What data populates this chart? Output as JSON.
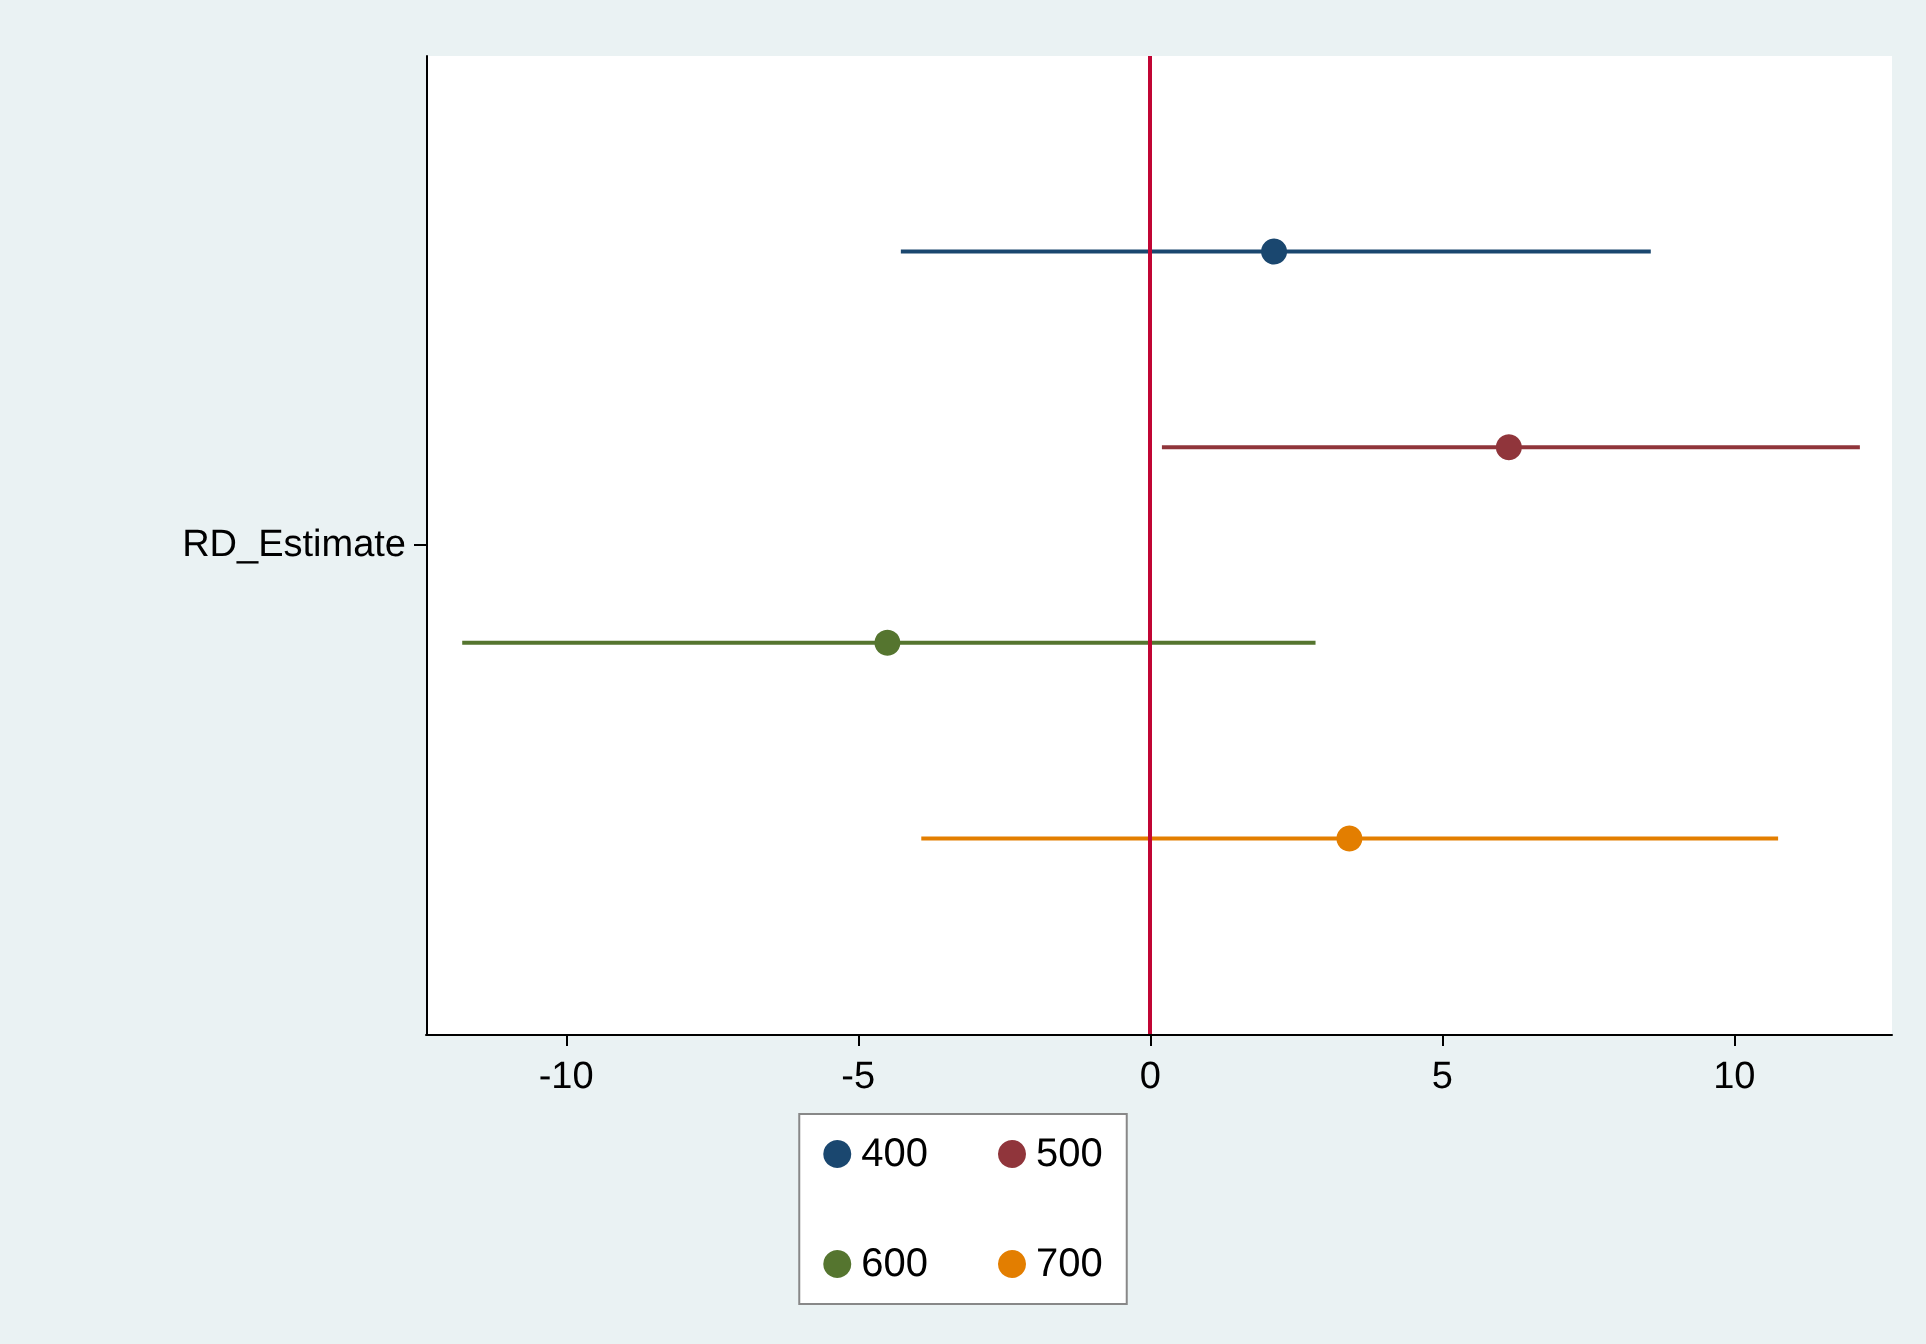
{
  "chart_data": {
    "type": "scatter",
    "orientation": "horizontal",
    "categories": [
      null,
      null,
      null,
      null
    ],
    "ylabel": "RD_Estimate",
    "series": [
      {
        "name": "400",
        "color": "#1a476f",
        "values": [
          2.12,
          null,
          null,
          null
        ],
        "errors": [
          [
            -4.27,
            8.57
          ],
          null,
          null,
          null
        ]
      },
      {
        "name": "500",
        "color": "#90353b",
        "values": [
          null,
          6.14,
          null,
          null
        ],
        "errors": [
          null,
          [
            0.2,
            12.15
          ],
          null,
          null
        ]
      },
      {
        "name": "600",
        "color": "#55752f",
        "values": [
          null,
          null,
          -4.5,
          null
        ],
        "errors": [
          null,
          null,
          [
            -11.78,
            2.83
          ],
          null
        ]
      },
      {
        "name": "700",
        "color": "#e37e00",
        "values": [
          null,
          null,
          null,
          3.41
        ],
        "errors": [
          null,
          null,
          null,
          [
            -3.92,
            10.75
          ]
        ]
      }
    ],
    "xlim": [
      -12.4,
      12.7
    ],
    "xticks": [
      -10,
      -5,
      0,
      5,
      10
    ],
    "ref_lines": [
      {
        "axis": "x",
        "value": 0,
        "color": "#c10534"
      }
    ],
    "marker": "circle",
    "grid": false,
    "legend": "bottom"
  }
}
